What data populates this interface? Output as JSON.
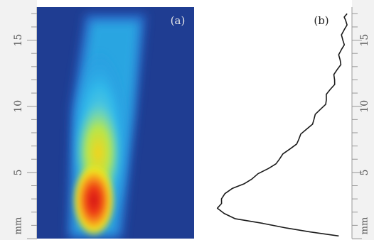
{
  "figure": {
    "panels": [
      {
        "id": "a",
        "label": "(a)",
        "type": "intensity-image",
        "colormap": "jet",
        "background_color": "#1f3d92"
      },
      {
        "id": "b",
        "label": "(b)",
        "type": "line-profile",
        "line_color": "#1a1a1a"
      }
    ],
    "axis": {
      "unit": "mm",
      "ticks": [
        "5",
        "10",
        "15"
      ],
      "range": [
        0,
        17.5
      ]
    },
    "colors": {
      "axis_strip": "#f2f2f2",
      "tick": "#999999",
      "label": "#555555"
    }
  },
  "chart_data": {
    "type": "line",
    "title": "",
    "xlabel": "",
    "ylabel": "mm",
    "ylim": [
      0,
      17.5
    ],
    "xlim": [
      0,
      1
    ],
    "series": [
      {
        "y": [
          0.2,
          0.8,
          1.5,
          2.3,
          3.0,
          3.8,
          4.5,
          5.3,
          6.0,
          6.8,
          7.5,
          8.3,
          9.0,
          9.8,
          10.5,
          11.3,
          12.0,
          12.8,
          13.5,
          14.3,
          15.0,
          15.8,
          16.5,
          17.0
        ],
        "x": [
          0.93,
          0.55,
          0.18,
          0.05,
          0.08,
          0.16,
          0.3,
          0.42,
          0.5,
          0.58,
          0.64,
          0.7,
          0.75,
          0.8,
          0.84,
          0.87,
          0.9,
          0.92,
          0.94,
          0.95,
          0.96,
          0.97,
          0.98,
          0.99
        ]
      }
    ]
  }
}
